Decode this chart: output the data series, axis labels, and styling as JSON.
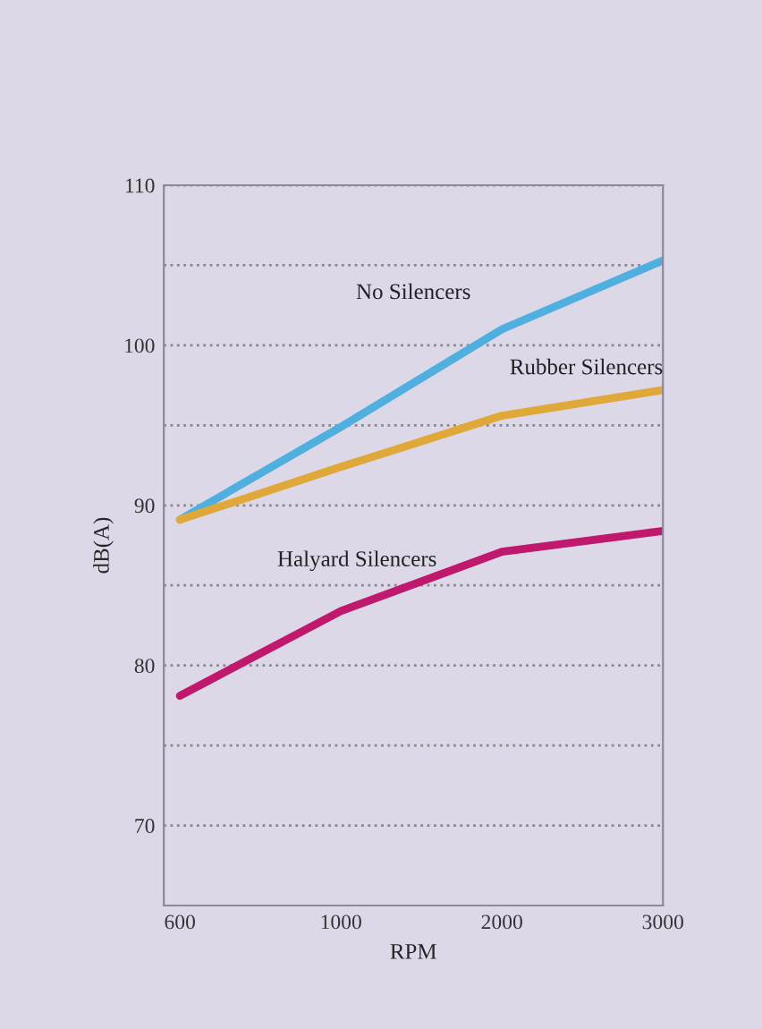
{
  "chart_data": {
    "type": "line",
    "xlabel": "RPM",
    "ylabel": "dB(A)",
    "categories": [
      "600",
      "1000",
      "2000",
      "3000"
    ],
    "ylim": [
      65,
      110
    ],
    "yticks": [
      {
        "value": 70,
        "label": "70"
      },
      {
        "value": 75,
        "label": null
      },
      {
        "value": 80,
        "label": "80"
      },
      {
        "value": 85,
        "label": null
      },
      {
        "value": 90,
        "label": "90"
      },
      {
        "value": 95,
        "label": null
      },
      {
        "value": 100,
        "label": "100"
      },
      {
        "value": 105,
        "label": null
      },
      {
        "value": 110,
        "label": "110"
      }
    ],
    "grid": "y",
    "legend": false,
    "marker": "none",
    "line_style": "solid",
    "series": [
      {
        "name": "No Silencers",
        "color": "#4fb0e0",
        "values": [
          89.1,
          94.9,
          101.0,
          105.3
        ]
      },
      {
        "name": "Rubber Silencers",
        "color": "#e0a838",
        "values": [
          89.1,
          92.4,
          95.6,
          97.2
        ]
      },
      {
        "name": "Halyard Silencers",
        "color": "#c0186c",
        "values": [
          78.1,
          83.4,
          87.1,
          88.4
        ]
      }
    ]
  }
}
